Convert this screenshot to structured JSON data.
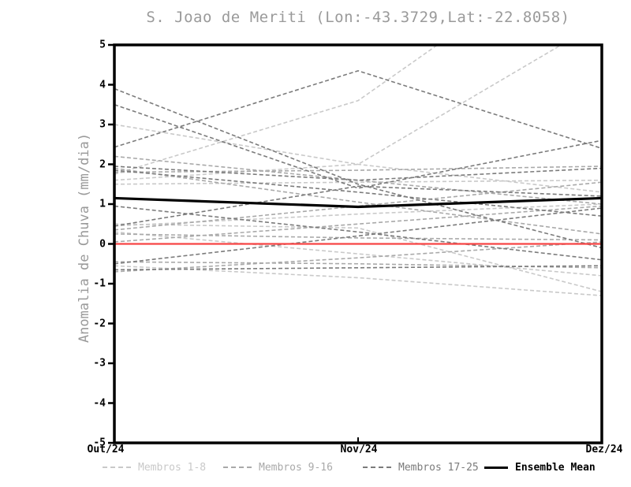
{
  "page": {
    "background": "#ffffff"
  },
  "chart_data": {
    "type": "line",
    "title": "S. Joao de Meriti (Lon:-43.3729,Lat:-22.8058)",
    "xlabel": "",
    "ylabel": "Anomalia de Chuva (mm/dia)",
    "x": [
      "Out/24",
      "Nov/24",
      "Dez/24"
    ],
    "ylim": [
      -5,
      5
    ],
    "y_ticks": [
      5,
      4,
      3,
      2,
      1,
      0,
      -1,
      -2,
      -3,
      -4,
      -5
    ],
    "grid": false,
    "legend_position": "bottom",
    "title_color": "#9a9a9a",
    "axis_color": "#000000",
    "groups": {
      "membros_1_8": {
        "label": "Membros 1-8",
        "color": "#c9c9c9"
      },
      "membros_9_16": {
        "label": "Membros 9-16",
        "color": "#a9a9a9"
      },
      "membros_17_25": {
        "label": "Membros 17-25",
        "color": "#7b7b7b"
      },
      "ensemble_mean": {
        "label": "Ensemble Mean",
        "color": "#000000"
      }
    },
    "series": [
      {
        "name": "member-1",
        "group": "membros_1_8",
        "style": "dashed",
        "values": [
          3.0,
          2.0,
          1.3
        ]
      },
      {
        "name": "member-2",
        "group": "membros_1_8",
        "style": "dashed",
        "values": [
          1.6,
          2.0,
          5.6
        ]
      },
      {
        "name": "member-3",
        "group": "membros_1_8",
        "style": "dashed",
        "values": [
          1.75,
          3.6,
          7.9
        ]
      },
      {
        "name": "member-4",
        "group": "membros_1_8",
        "style": "dashed",
        "values": [
          0.45,
          0.75,
          1.0
        ]
      },
      {
        "name": "member-5",
        "group": "membros_1_8",
        "style": "dashed",
        "values": [
          0.3,
          -0.25,
          -0.8
        ]
      },
      {
        "name": "member-6",
        "group": "membros_1_8",
        "style": "dashed",
        "values": [
          -0.55,
          -0.85,
          -1.3
        ]
      },
      {
        "name": "member-7",
        "group": "membros_1_8",
        "style": "dashed",
        "values": [
          1.5,
          1.55,
          1.6
        ]
      },
      {
        "name": "member-8",
        "group": "membros_1_8",
        "style": "dashed",
        "values": [
          0.5,
          0.4,
          -1.2
        ]
      },
      {
        "name": "member-9",
        "group": "membros_9_16",
        "style": "dashed",
        "values": [
          2.2,
          1.6,
          1.0
        ]
      },
      {
        "name": "member-10",
        "group": "membros_9_16",
        "style": "dashed",
        "values": [
          1.8,
          1.85,
          1.95
        ]
      },
      {
        "name": "member-11",
        "group": "membros_9_16",
        "style": "dashed",
        "values": [
          0.35,
          0.95,
          1.55
        ]
      },
      {
        "name": "member-12",
        "group": "membros_9_16",
        "style": "dashed",
        "values": [
          0.05,
          0.5,
          0.95
        ]
      },
      {
        "name": "member-13",
        "group": "membros_9_16",
        "style": "dashed",
        "values": [
          -0.45,
          -0.5,
          -0.6
        ]
      },
      {
        "name": "member-14",
        "group": "membros_9_16",
        "style": "dashed",
        "values": [
          -0.7,
          -0.35,
          0.05
        ]
      },
      {
        "name": "member-15",
        "group": "membros_9_16",
        "style": "dashed",
        "values": [
          1.9,
          1.05,
          0.25
        ]
      },
      {
        "name": "member-16",
        "group": "membros_9_16",
        "style": "dashed",
        "values": [
          0.25,
          0.15,
          0.1
        ]
      },
      {
        "name": "member-17",
        "group": "membros_17_25",
        "style": "dashed",
        "values": [
          3.9,
          1.5,
          -0.1
        ]
      },
      {
        "name": "member-18",
        "group": "membros_17_25",
        "style": "dashed",
        "values": [
          3.5,
          1.4,
          2.6
        ]
      },
      {
        "name": "member-19",
        "group": "membros_17_25",
        "style": "dashed",
        "values": [
          2.43,
          4.35,
          2.4
        ]
      },
      {
        "name": "member-20",
        "group": "membros_17_25",
        "style": "dashed",
        "values": [
          1.95,
          1.6,
          1.9
        ]
      },
      {
        "name": "member-21",
        "group": "membros_17_25",
        "style": "dashed",
        "values": [
          1.85,
          1.3,
          0.7
        ]
      },
      {
        "name": "member-22",
        "group": "membros_17_25",
        "style": "dashed",
        "values": [
          0.45,
          1.45,
          1.2
        ]
      },
      {
        "name": "member-23",
        "group": "membros_17_25",
        "style": "dashed",
        "values": [
          0.95,
          0.3,
          -0.4
        ]
      },
      {
        "name": "member-24",
        "group": "membros_17_25",
        "style": "dashed",
        "values": [
          -0.5,
          0.2,
          0.9
        ]
      },
      {
        "name": "member-25",
        "group": "membros_17_25",
        "style": "dashed",
        "values": [
          -0.65,
          -0.6,
          -0.55
        ]
      },
      {
        "name": "zero-reference",
        "group": null,
        "style": "solid",
        "color": "#f74545",
        "width": 2.2,
        "values": [
          0,
          0,
          0
        ]
      },
      {
        "name": "ensemble-mean",
        "group": "ensemble_mean",
        "style": "solid",
        "color": "#000000",
        "width": 3.2,
        "values": [
          1.15,
          0.93,
          1.15
        ]
      }
    ],
    "legend": [
      {
        "label": "Membros 1-8",
        "color": "#c9c9c9",
        "style": "dashed"
      },
      {
        "label": "Membros 9-16",
        "color": "#a9a9a9",
        "style": "dashed"
      },
      {
        "label": "Membros 17-25",
        "color": "#7b7b7b",
        "style": "dashed"
      },
      {
        "label": "Ensemble Mean",
        "color": "#000000",
        "style": "solid"
      }
    ]
  }
}
